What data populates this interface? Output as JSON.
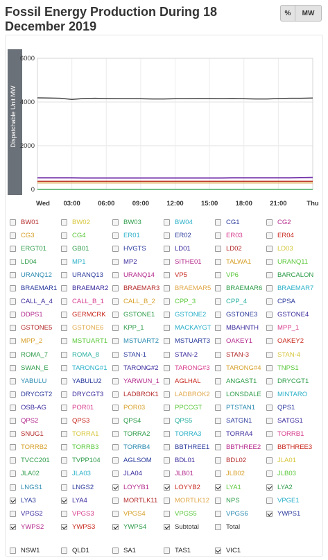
{
  "header": {
    "title": "Fossil Energy Production During 18 December 2019",
    "toggle_percent": "%",
    "toggle_mw": "MW"
  },
  "chart_data": {
    "type": "line",
    "ylabel": "Dispatchable Unit MW",
    "ylim": [
      0,
      6000
    ],
    "yticks": [
      0,
      2000,
      4000,
      6000
    ],
    "x_labels": [
      "Wed",
      "03:00",
      "06:00",
      "09:00",
      "12:00",
      "15:00",
      "18:00",
      "21:00",
      "Thu"
    ],
    "grid": true,
    "series": [
      {
        "color": "#444444",
        "values": [
          4190,
          4180,
          4170,
          4120,
          4160,
          4170,
          4160,
          4150,
          4150,
          4150,
          4140,
          4140,
          4150,
          4150,
          4160,
          4160,
          4150,
          4160,
          4150,
          4140,
          4140,
          4160,
          4170,
          4170,
          4180
        ]
      },
      {
        "color": "#7b3fb0",
        "values": [
          530,
          530,
          530,
          530,
          525,
          525,
          525,
          525,
          525,
          525,
          525,
          525,
          525,
          525,
          525,
          525,
          525,
          530,
          530,
          530,
          530,
          530,
          530,
          540,
          545
        ]
      },
      {
        "color": "#c0392b",
        "values": [
          370,
          370,
          370,
          370,
          370,
          370,
          370,
          370,
          370,
          370,
          370,
          370,
          370,
          370,
          370,
          370,
          370,
          370,
          370,
          370,
          370,
          370,
          370,
          370,
          370
        ]
      },
      {
        "color": "#d9a24a",
        "values": [
          300,
          300,
          300,
          300,
          300,
          300,
          300,
          300,
          300,
          300,
          300,
          300,
          300,
          300,
          300,
          300,
          300,
          300,
          300,
          300,
          300,
          300,
          300,
          300,
          300
        ]
      },
      {
        "color": "#3aa655",
        "values": [
          5,
          5,
          5,
          5,
          5,
          5,
          5,
          5,
          5,
          5,
          5,
          5,
          5,
          5,
          5,
          5,
          5,
          5,
          5,
          5,
          5,
          5,
          5,
          5,
          5
        ]
      }
    ]
  },
  "units": [
    [
      {
        "label": "BW01",
        "color": "#b42a2a",
        "checked": false
      },
      {
        "label": "BW02",
        "color": "#d6c63a",
        "checked": false
      },
      {
        "label": "BW03",
        "color": "#2e9c4a",
        "checked": false
      },
      {
        "label": "BW04",
        "color": "#2ab0c8",
        "checked": false
      },
      {
        "label": "CG1",
        "color": "#2a3a9c",
        "checked": false
      },
      {
        "label": "CG2",
        "color": "#b42a8c",
        "checked": false
      }
    ],
    [
      {
        "label": "CG3",
        "color": "#d6a02a",
        "checked": false
      },
      {
        "label": "CG4",
        "color": "#5ac83a",
        "checked": false
      },
      {
        "label": "ER01",
        "color": "#2ab0c8",
        "checked": false
      },
      {
        "label": "ER02",
        "color": "#2a3a9c",
        "checked": false
      },
      {
        "label": "ER03",
        "color": "#d63a8c",
        "checked": false
      },
      {
        "label": "ER04",
        "color": "#c8281e",
        "checked": false
      }
    ],
    [
      {
        "label": "ERGT01",
        "color": "#2e9c4a",
        "checked": false
      },
      {
        "label": "GB01",
        "color": "#2e9c4a",
        "checked": false
      },
      {
        "label": "HVGTS",
        "color": "#2a3a9c",
        "checked": false
      },
      {
        "label": "LD01",
        "color": "#3a2a9c",
        "checked": false
      },
      {
        "label": "LD02",
        "color": "#b42a2a",
        "checked": false
      },
      {
        "label": "LD03",
        "color": "#d6c63a",
        "checked": false
      }
    ],
    [
      {
        "label": "LD04",
        "color": "#2e9c4a",
        "checked": false
      },
      {
        "label": "MP1",
        "color": "#2ab0c8",
        "checked": false
      },
      {
        "label": "MP2",
        "color": "#3a2a9c",
        "checked": false
      },
      {
        "label": "SITHE01",
        "color": "#b42a8c",
        "checked": false
      },
      {
        "label": "TALWA1",
        "color": "#d6a02a",
        "checked": false
      },
      {
        "label": "URANQ11",
        "color": "#5ac83a",
        "checked": false
      }
    ],
    [
      {
        "label": "URANQ12",
        "color": "#2a8ab0",
        "checked": false
      },
      {
        "label": "URANQ13",
        "color": "#2a3a9c",
        "checked": false
      },
      {
        "label": "URANQ14",
        "color": "#b42a8c",
        "checked": false
      },
      {
        "label": "VP5",
        "color": "#c8281e",
        "checked": false
      },
      {
        "label": "VP6",
        "color": "#5ac83a",
        "checked": false
      },
      {
        "label": "BARCALON",
        "color": "#2e9c4a",
        "checked": false
      }
    ],
    [
      {
        "label": "BRAEMAR1",
        "color": "#2a3a9c",
        "checked": false
      },
      {
        "label": "BRAEMAR2",
        "color": "#3a2a9c",
        "checked": false
      },
      {
        "label": "BRAEMAR3",
        "color": "#b42a2a",
        "checked": false
      },
      {
        "label": "BRAEMAR5",
        "color": "#e0a84a",
        "checked": false
      },
      {
        "label": "BRAEMAR6",
        "color": "#2e9c4a",
        "checked": false
      },
      {
        "label": "BRAEMAR7",
        "color": "#2ab0c8",
        "checked": false
      }
    ],
    [
      {
        "label": "CALL_A_4",
        "color": "#3a2a9c",
        "checked": false
      },
      {
        "label": "CALL_B_1",
        "color": "#d63a8c",
        "checked": false
      },
      {
        "label": "CALL_B_2",
        "color": "#d6a02a",
        "checked": false
      },
      {
        "label": "CPP_3",
        "color": "#5ac83a",
        "checked": false
      },
      {
        "label": "CPP_4",
        "color": "#2ab0a0",
        "checked": false
      },
      {
        "label": "CPSA",
        "color": "#2a3a9c",
        "checked": false
      }
    ],
    [
      {
        "label": "DDPS1",
        "color": "#b42a8c",
        "checked": false
      },
      {
        "label": "GERMCRK",
        "color": "#c8281e",
        "checked": false
      },
      {
        "label": "GSTONE1",
        "color": "#2e9c4a",
        "checked": false
      },
      {
        "label": "GSTONE2",
        "color": "#2ab0c8",
        "checked": false
      },
      {
        "label": "GSTONE3",
        "color": "#2a3a9c",
        "checked": false
      },
      {
        "label": "GSTONE4",
        "color": "#3a2a9c",
        "checked": false
      }
    ],
    [
      {
        "label": "GSTONE5",
        "color": "#b42a2a",
        "checked": false
      },
      {
        "label": "GSTONE6",
        "color": "#e0a84a",
        "checked": false
      },
      {
        "label": "KPP_1",
        "color": "#2e9c4a",
        "checked": false
      },
      {
        "label": "MACKAYGT",
        "color": "#2ab0c8",
        "checked": false
      },
      {
        "label": "MBAHNTH",
        "color": "#3a2a9c",
        "checked": false
      },
      {
        "label": "MPP_1",
        "color": "#d63a8c",
        "checked": false
      }
    ],
    [
      {
        "label": "MPP_2",
        "color": "#d6a02a",
        "checked": false
      },
      {
        "label": "MSTUART1",
        "color": "#5ac83a",
        "checked": false
      },
      {
        "label": "MSTUART2",
        "color": "#2a8ab0",
        "checked": false
      },
      {
        "label": "MSTUART3",
        "color": "#2a3a9c",
        "checked": false
      },
      {
        "label": "OAKEY1",
        "color": "#b42a8c",
        "checked": false
      },
      {
        "label": "OAKEY2",
        "color": "#c8281e",
        "checked": false
      }
    ],
    [
      {
        "label": "ROMA_7",
        "color": "#2e9c4a",
        "checked": false
      },
      {
        "label": "ROMA_8",
        "color": "#2ab0a0",
        "checked": false
      },
      {
        "label": "STAN-1",
        "color": "#2a3a9c",
        "checked": false
      },
      {
        "label": "STAN-2",
        "color": "#3a2a9c",
        "checked": false
      },
      {
        "label": "STAN-3",
        "color": "#b42a2a",
        "checked": false
      },
      {
        "label": "STAN-4",
        "color": "#d6c63a",
        "checked": false
      }
    ],
    [
      {
        "label": "SWAN_E",
        "color": "#2e9c4a",
        "checked": false
      },
      {
        "label": "TARONG#1",
        "color": "#2ab0c8",
        "checked": false
      },
      {
        "label": "TARONG#2",
        "color": "#3a2a9c",
        "checked": false
      },
      {
        "label": "TARONG#3",
        "color": "#d63a8c",
        "checked": false
      },
      {
        "label": "TARONG#4",
        "color": "#d6a02a",
        "checked": false
      },
      {
        "label": "TNPS1",
        "color": "#5ac83a",
        "checked": false
      }
    ],
    [
      {
        "label": "YABULU",
        "color": "#2a8ab0",
        "checked": false
      },
      {
        "label": "YABULU2",
        "color": "#2a3a9c",
        "checked": false
      },
      {
        "label": "YARWUN_1",
        "color": "#b42a8c",
        "checked": false
      },
      {
        "label": "AGLHAL",
        "color": "#c8281e",
        "checked": false
      },
      {
        "label": "ANGAST1",
        "color": "#2e9c4a",
        "checked": false
      },
      {
        "label": "DRYCGT1",
        "color": "#2e9c4a",
        "checked": false
      }
    ],
    [
      {
        "label": "DRYCGT2",
        "color": "#2a3a9c",
        "checked": false
      },
      {
        "label": "DRYCGT3",
        "color": "#3a2a9c",
        "checked": false
      },
      {
        "label": "LADBROK1",
        "color": "#b42a2a",
        "checked": false
      },
      {
        "label": "LADBROK2",
        "color": "#e0a84a",
        "checked": false
      },
      {
        "label": "LONSDALE",
        "color": "#2e9c4a",
        "checked": false
      },
      {
        "label": "MINTARO",
        "color": "#2ab0c8",
        "checked": false
      }
    ],
    [
      {
        "label": "OSB-AG",
        "color": "#3a2a9c",
        "checked": false
      },
      {
        "label": "POR01",
        "color": "#d63a8c",
        "checked": false
      },
      {
        "label": "POR03",
        "color": "#d6a02a",
        "checked": false
      },
      {
        "label": "PPCCGT",
        "color": "#5ac83a",
        "checked": false
      },
      {
        "label": "PTSTAN1",
        "color": "#2a8ab0",
        "checked": false
      },
      {
        "label": "QPS1",
        "color": "#2a3a9c",
        "checked": false
      }
    ],
    [
      {
        "label": "QPS2",
        "color": "#b42a8c",
        "checked": false
      },
      {
        "label": "QPS3",
        "color": "#c8281e",
        "checked": false
      },
      {
        "label": "QPS4",
        "color": "#2e9c4a",
        "checked": false
      },
      {
        "label": "QPS5",
        "color": "#2ab0a0",
        "checked": false
      },
      {
        "label": "SATGN1",
        "color": "#2a3a9c",
        "checked": false
      },
      {
        "label": "SATGS1",
        "color": "#3a2a9c",
        "checked": false
      }
    ],
    [
      {
        "label": "SNUG1",
        "color": "#b42a2a",
        "checked": false
      },
      {
        "label": "TORRA1",
        "color": "#d6c63a",
        "checked": false
      },
      {
        "label": "TORRA2",
        "color": "#2e9c4a",
        "checked": false
      },
      {
        "label": "TORRA3",
        "color": "#2ab0c8",
        "checked": false
      },
      {
        "label": "TORRA4",
        "color": "#3a2a9c",
        "checked": false
      },
      {
        "label": "TORRB1",
        "color": "#d63a8c",
        "checked": false
      }
    ],
    [
      {
        "label": "TORRB2",
        "color": "#d6a02a",
        "checked": false
      },
      {
        "label": "TORRB3",
        "color": "#5ac83a",
        "checked": false
      },
      {
        "label": "TORRB4",
        "color": "#2a8ab0",
        "checked": false
      },
      {
        "label": "BBTHREE1",
        "color": "#2a3a9c",
        "checked": false
      },
      {
        "label": "BBTHREE2",
        "color": "#b42a8c",
        "checked": false
      },
      {
        "label": "BBTHREE3",
        "color": "#c8281e",
        "checked": false
      }
    ],
    [
      {
        "label": "TVCC201",
        "color": "#2e9c4a",
        "checked": false
      },
      {
        "label": "TVPP104",
        "color": "#2e9c4a",
        "checked": false
      },
      {
        "label": "AGLSOM",
        "color": "#2a3a9c",
        "checked": false
      },
      {
        "label": "BDL01",
        "color": "#3a2a9c",
        "checked": false
      },
      {
        "label": "BDL02",
        "color": "#b42a2a",
        "checked": false
      },
      {
        "label": "JLA01",
        "color": "#d6c63a",
        "checked": false
      }
    ],
    [
      {
        "label": "JLA02",
        "color": "#2e9c4a",
        "checked": false
      },
      {
        "label": "JLA03",
        "color": "#2ab0c8",
        "checked": false
      },
      {
        "label": "JLA04",
        "color": "#3a2a9c",
        "checked": false
      },
      {
        "label": "JLB01",
        "color": "#b42a8c",
        "checked": false
      },
      {
        "label": "JLB02",
        "color": "#d6a02a",
        "checked": false
      },
      {
        "label": "JLB03",
        "color": "#5ac83a",
        "checked": false
      }
    ],
    [
      {
        "label": "LNGS1",
        "color": "#2a8ab0",
        "checked": false
      },
      {
        "label": "LNGS2",
        "color": "#2a3a9c",
        "checked": false
      },
      {
        "label": "LOYYB1",
        "color": "#b42a8c",
        "checked": true
      },
      {
        "label": "LOYYB2",
        "color": "#c8281e",
        "checked": true
      },
      {
        "label": "LYA1",
        "color": "#5ac83a",
        "checked": true
      },
      {
        "label": "LYA2",
        "color": "#2e9c4a",
        "checked": true
      }
    ],
    [
      {
        "label": "LYA3",
        "color": "#2a3a9c",
        "checked": true
      },
      {
        "label": "LYA4",
        "color": "#3a2a9c",
        "checked": true
      },
      {
        "label": "MORTLK11",
        "color": "#b42a2a",
        "checked": false
      },
      {
        "label": "MORTLK12",
        "color": "#e0a84a",
        "checked": false
      },
      {
        "label": "NPS",
        "color": "#2e9c4a",
        "checked": false
      },
      {
        "label": "VPGE1",
        "color": "#2ab0c8",
        "checked": false
      }
    ],
    [
      {
        "label": "VPGS2",
        "color": "#3a2a9c",
        "checked": false
      },
      {
        "label": "VPGS3",
        "color": "#d63a8c",
        "checked": false
      },
      {
        "label": "VPGS4",
        "color": "#d6a02a",
        "checked": false
      },
      {
        "label": "VPGS5",
        "color": "#5ac83a",
        "checked": false
      },
      {
        "label": "VPGS6",
        "color": "#2a8ab0",
        "checked": false
      },
      {
        "label": "YWPS1",
        "color": "#2a3a9c",
        "checked": true
      }
    ],
    [
      {
        "label": "YWPS2",
        "color": "#b42a8c",
        "checked": true
      },
      {
        "label": "YWPS3",
        "color": "#c8281e",
        "checked": true
      },
      {
        "label": "YWPS4",
        "color": "#2e9c4a",
        "checked": true
      },
      {
        "label": "Subtotal",
        "color": "#333333",
        "checked": true
      },
      {
        "label": "Total",
        "color": "#333333",
        "checked": false
      }
    ]
  ],
  "regions": [
    {
      "label": "NSW1",
      "checked": false
    },
    {
      "label": "QLD1",
      "checked": false
    },
    {
      "label": "SA1",
      "checked": false
    },
    {
      "label": "TAS1",
      "checked": false
    },
    {
      "label": "VIC1",
      "checked": true
    }
  ]
}
